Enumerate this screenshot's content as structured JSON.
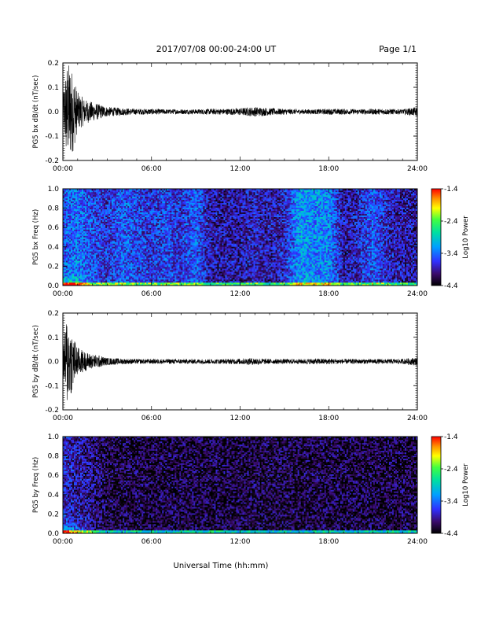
{
  "header": {
    "title": "2017/07/08  00:00-24:00 UT",
    "page": "Page 1/1"
  },
  "xaxis_label": "Universal Time (hh:mm)",
  "colorbar_label": "Log10 Power",
  "colorbar_ticks": [
    "-1.4",
    "-2.4",
    "-3.4",
    "-4.4"
  ],
  "colors": {
    "ink": "#000000",
    "spectral_low": "#000000",
    "spectral_high": "#ff0000"
  },
  "chart_data": [
    {
      "type": "line",
      "ylabel": "PG5 bx dB/dt (nT/sec)",
      "xlim": [
        0,
        24
      ],
      "ylim": [
        -0.2,
        0.2
      ],
      "x_ticks": [
        "00:00",
        "06:00",
        "12:00",
        "18:00",
        "24:00"
      ],
      "y_ticks": [
        "0.2",
        "0.1",
        "0.0",
        "-0.1",
        "-0.2"
      ],
      "envelope": {
        "x": [
          0,
          0.25,
          0.5,
          0.75,
          1,
          1.5,
          2,
          2.5,
          3,
          4,
          5,
          6,
          7,
          8,
          9,
          10,
          11,
          12,
          13,
          14,
          15,
          16,
          17,
          18,
          19,
          20,
          21,
          22,
          23,
          24
        ],
        "amplitude": [
          0.06,
          0.2,
          0.2,
          0.15,
          0.08,
          0.05,
          0.04,
          0.03,
          0.02,
          0.015,
          0.012,
          0.012,
          0.01,
          0.01,
          0.01,
          0.012,
          0.012,
          0.015,
          0.02,
          0.015,
          0.012,
          0.01,
          0.01,
          0.012,
          0.012,
          0.01,
          0.012,
          0.012,
          0.01,
          0.02
        ]
      }
    },
    {
      "type": "heatmap",
      "ylabel": "PG5 bx Freq (Hz)",
      "xlim": [
        0,
        24
      ],
      "ylim": [
        0,
        1
      ],
      "x_ticks": [
        "00:00",
        "06:00",
        "12:00",
        "18:00",
        "24:00"
      ],
      "y_ticks": [
        "1.0",
        "0.8",
        "0.6",
        "0.4",
        "0.2",
        "0.0"
      ],
      "zlim": [
        -4.4,
        -1.4
      ],
      "column_mean_log_power": {
        "x": [
          0,
          1,
          2,
          3,
          4,
          5,
          6,
          7,
          8,
          9,
          10,
          11,
          12,
          13,
          14,
          15,
          16,
          17,
          18,
          19,
          20,
          21,
          22,
          23,
          24
        ],
        "value": [
          -3.6,
          -3.4,
          -3.6,
          -3.7,
          -3.5,
          -3.6,
          -3.7,
          -3.6,
          -3.7,
          -3.5,
          -3.9,
          -3.9,
          -3.9,
          -3.8,
          -3.9,
          -3.8,
          -3.2,
          -3.3,
          -3.3,
          -3.9,
          -3.8,
          -3.5,
          -3.8,
          -3.9,
          -3.9
        ]
      }
    },
    {
      "type": "line",
      "ylabel": "PG5 by dB/dt (nT/sec)",
      "xlim": [
        0,
        24
      ],
      "ylim": [
        -0.2,
        0.2
      ],
      "x_ticks": [
        "00:00",
        "06:00",
        "12:00",
        "18:00",
        "24:00"
      ],
      "y_ticks": [
        "0.2",
        "0.1",
        "0.0",
        "-0.1",
        "-0.2"
      ],
      "envelope": {
        "x": [
          0,
          0.25,
          0.5,
          0.75,
          1,
          1.5,
          2,
          2.5,
          3,
          4,
          5,
          6,
          7,
          8,
          9,
          10,
          11,
          12,
          13,
          14,
          15,
          16,
          17,
          18,
          19,
          20,
          21,
          22,
          23,
          24
        ],
        "amplitude": [
          0.05,
          0.19,
          0.15,
          0.1,
          0.06,
          0.04,
          0.03,
          0.025,
          0.015,
          0.012,
          0.01,
          0.01,
          0.01,
          0.01,
          0.01,
          0.01,
          0.01,
          0.012,
          0.015,
          0.01,
          0.01,
          0.01,
          0.012,
          0.012,
          0.01,
          0.01,
          0.01,
          0.01,
          0.01,
          0.018
        ]
      }
    },
    {
      "type": "heatmap",
      "ylabel": "PG5 by Freq (Hz)",
      "xlim": [
        0,
        24
      ],
      "ylim": [
        0,
        1
      ],
      "x_ticks": [
        "00:00",
        "06:00",
        "12:00",
        "18:00",
        "24:00"
      ],
      "y_ticks": [
        "1.0",
        "0.8",
        "0.6",
        "0.4",
        "0.2",
        "0.0"
      ],
      "zlim": [
        -4.4,
        -1.4
      ],
      "column_mean_log_power": {
        "x": [
          0,
          1,
          2,
          3,
          4,
          5,
          6,
          7,
          8,
          9,
          10,
          11,
          12,
          13,
          14,
          15,
          16,
          17,
          18,
          19,
          20,
          21,
          22,
          23,
          24
        ],
        "value": [
          -3.8,
          -3.9,
          -4.0,
          -4.2,
          -4.2,
          -4.2,
          -4.2,
          -4.2,
          -4.2,
          -4.2,
          -4.2,
          -4.2,
          -4.2,
          -4.2,
          -4.2,
          -4.2,
          -4.2,
          -4.2,
          -4.2,
          -4.2,
          -4.2,
          -4.2,
          -4.2,
          -4.2,
          -4.2
        ]
      }
    }
  ]
}
